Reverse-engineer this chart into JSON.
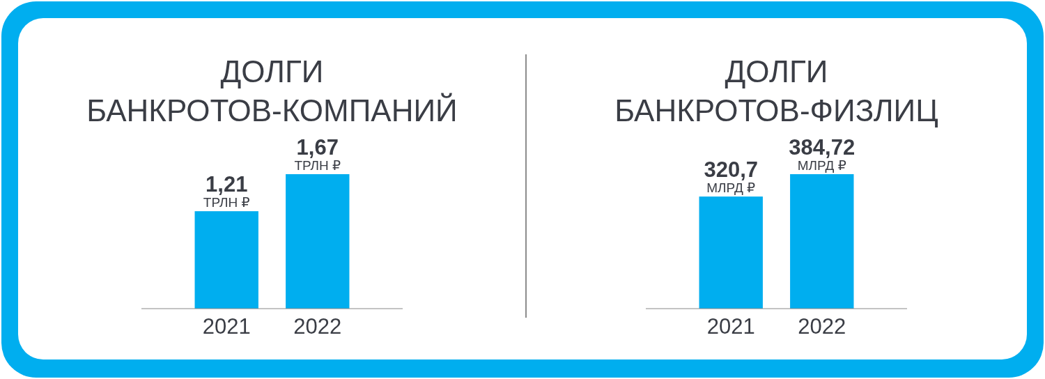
{
  "chart_data": [
    {
      "type": "bar",
      "title": "ДОЛГИ БАНКРОТОВ-КОМПАНИЙ",
      "categories": [
        "2021",
        "2022"
      ],
      "values": [
        1.21,
        1.67
      ],
      "color": "#00aeef",
      "value_labels": [
        "1,21 ТРЛН ₽",
        "1,67 ТРЛН ₽"
      ]
    },
    {
      "type": "bar",
      "title": "ДОЛГИ БАНКРОТОВ-ФИЗЛИЦ",
      "categories": [
        "2021",
        "2022"
      ],
      "values": [
        320.7,
        384.72
      ],
      "color": "#00aeef",
      "value_labels": [
        "320,7 МЛРД ₽",
        "384,72 МЛРД ₽"
      ]
    }
  ]
}
